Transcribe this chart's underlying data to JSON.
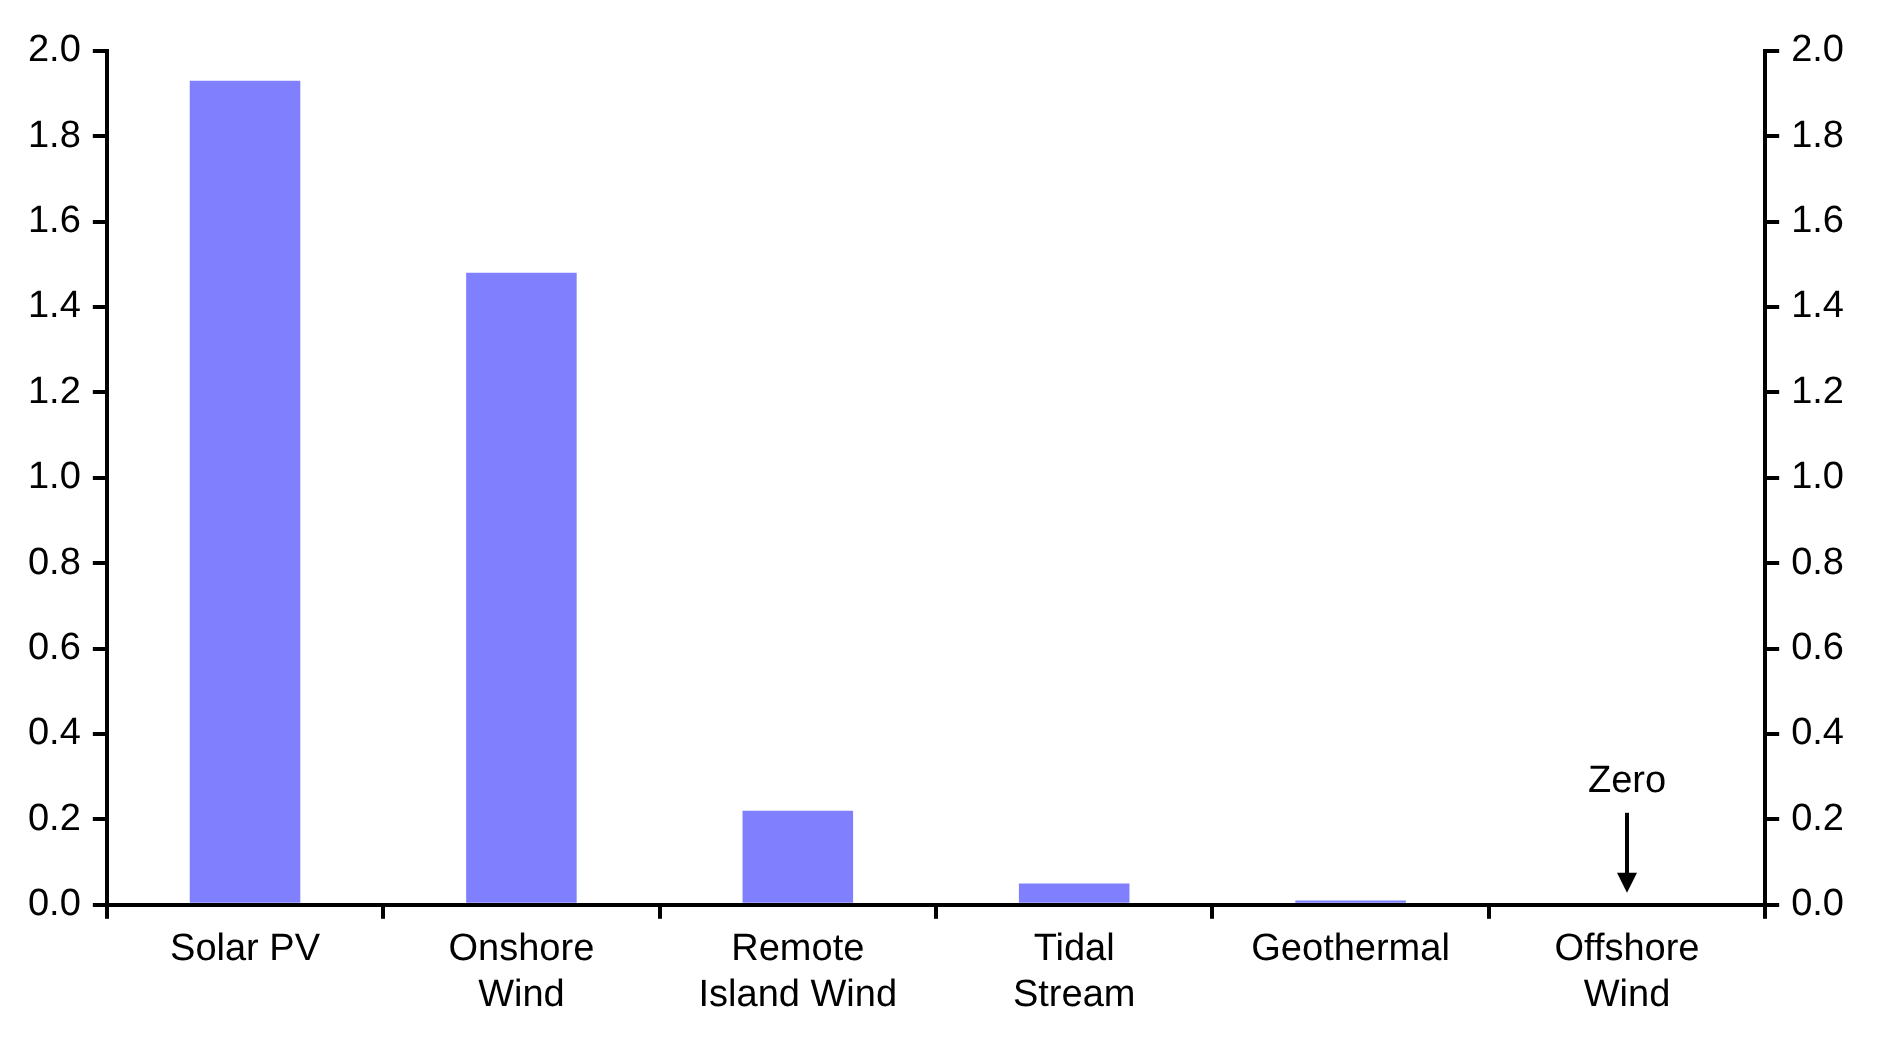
{
  "chart_data": {
    "type": "bar",
    "categories": [
      "Solar PV",
      "Onshore\nWind",
      "Remote\nIsland Wind",
      "Tidal\nStream",
      "Geothermal",
      "Offshore\nWind"
    ],
    "series": [
      {
        "color": "#8080ff",
        "values": [
          1.93,
          1.48,
          0.22,
          0.05,
          0.01,
          0
        ]
      }
    ],
    "ylim": [
      0,
      2
    ],
    "yticks": [
      {
        "value": 0,
        "label": "0.0"
      },
      0.2,
      0.4,
      0.6,
      0.8,
      {
        "value": 1,
        "label": "1.0"
      },
      1.2,
      1.4,
      1.6,
      1.8,
      {
        "value": 2,
        "label": "2.0"
      }
    ],
    "y2lim": [
      0,
      2
    ],
    "y2ticks": [
      {
        "value": 0,
        "label": "0.0"
      },
      0.2,
      0.4,
      0.6,
      0.8,
      {
        "value": 1,
        "label": "1.0"
      },
      1.2,
      1.4,
      1.6,
      1.8,
      {
        "value": 2,
        "label": "2.0"
      }
    ],
    "annotations": [
      {
        "text": "Zero",
        "x": "Offshore\nWind",
        "y": 0
      }
    ],
    "grid": false,
    "legend": false
  }
}
